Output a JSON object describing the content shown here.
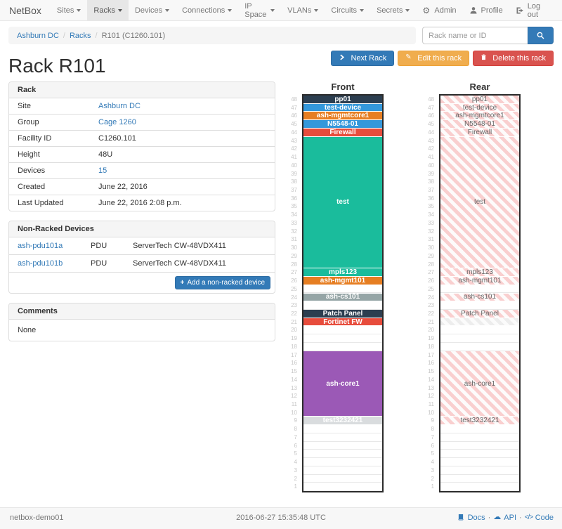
{
  "navbar": {
    "brand": "NetBox",
    "items": [
      {
        "label": "Sites"
      },
      {
        "label": "Racks"
      },
      {
        "label": "Devices"
      },
      {
        "label": "Connections"
      },
      {
        "label": "IP Space"
      },
      {
        "label": "VLANs"
      },
      {
        "label": "Circuits"
      },
      {
        "label": "Secrets"
      }
    ],
    "active_item": "Racks",
    "right_items": [
      {
        "label": "Admin",
        "icon": "gear-icon"
      },
      {
        "label": "Profile",
        "icon": "user-icon"
      },
      {
        "label": "Log out",
        "icon": "logout-icon"
      }
    ]
  },
  "breadcrumb": {
    "items": [
      "Ashburn DC",
      "Racks",
      "R101 (C1260.101)"
    ]
  },
  "search": {
    "placeholder": "Rack name or ID",
    "icon": "search-icon"
  },
  "actions": [
    {
      "label": "Next Rack",
      "style": "primary",
      "icon": "chevron-right-icon"
    },
    {
      "label": "Edit this rack",
      "style": "warning",
      "icon": "pencil-icon"
    },
    {
      "label": "Delete this rack",
      "style": "danger",
      "icon": "trash-icon"
    }
  ],
  "page_title": "Rack R101",
  "rack_panel": {
    "title": "Rack",
    "rows": [
      {
        "label": "Site",
        "value": "Ashburn DC",
        "link": true
      },
      {
        "label": "Group",
        "value": "Cage 1260",
        "link": true
      },
      {
        "label": "Facility ID",
        "value": "C1260.101",
        "link": false
      },
      {
        "label": "Height",
        "value": "48U",
        "link": false
      },
      {
        "label": "Devices",
        "value": "15",
        "link": true
      },
      {
        "label": "Created",
        "value": "June 22, 2016",
        "link": false
      },
      {
        "label": "Last Updated",
        "value": "June 22, 2016 2:08 p.m.",
        "link": false
      }
    ]
  },
  "non_racked": {
    "title": "Non-Racked Devices",
    "rows": [
      {
        "name": "ash-pdu101a",
        "role": "PDU",
        "type": "ServerTech CW-48VDX411"
      },
      {
        "name": "ash-pdu101b",
        "role": "PDU",
        "type": "ServerTech CW-48VDX411"
      }
    ],
    "add_button": "Add a non-racked device",
    "add_icon": "plus-icon"
  },
  "comments": {
    "title": "Comments",
    "body": "None"
  },
  "rack_units": 48,
  "elevations": {
    "front": {
      "title": "Front",
      "devices": [
        {
          "unit": 48,
          "span": 1,
          "label": "pp01",
          "bg": "#2c3e50",
          "fg": "#ffffff"
        },
        {
          "unit": 47,
          "span": 1,
          "label": "test-device",
          "bg": "#3498db",
          "fg": "#ffffff"
        },
        {
          "unit": 46,
          "span": 1,
          "label": "ash-mgmtcore1",
          "bg": "#e67e22",
          "fg": "#ffffff"
        },
        {
          "unit": 45,
          "span": 1,
          "label": "N5548-01",
          "bg": "#3498db",
          "fg": "#ffffff"
        },
        {
          "unit": 44,
          "span": 1,
          "label": "Firewall",
          "bg": "#e74c3c",
          "fg": "#ffffff"
        },
        {
          "unit": 43,
          "span": 16,
          "label": "test",
          "bg": "#1abc9c",
          "fg": "#ffffff"
        },
        {
          "unit": 27,
          "span": 1,
          "label": "mpls123",
          "bg": "#1abc9c",
          "fg": "#ffffff"
        },
        {
          "unit": 26,
          "span": 1,
          "label": "ash-mgmt101",
          "bg": "#e67e22",
          "fg": "#ffffff"
        },
        {
          "unit": 24,
          "span": 1,
          "label": "ash-cs101",
          "bg": "#95a5a6",
          "fg": "#ffffff"
        },
        {
          "unit": 22,
          "span": 1,
          "label": "Patch Panel",
          "bg": "#2c3e50",
          "fg": "#ffffff"
        },
        {
          "unit": 21,
          "span": 1,
          "label": "Fortinet FW",
          "bg": "#e74c3c",
          "fg": "#ffffff"
        },
        {
          "unit": 17,
          "span": 8,
          "label": "ash-core1",
          "bg": "#9b59b6",
          "fg": "#ffffff"
        },
        {
          "unit": 9,
          "span": 1,
          "label": "test3232421",
          "bg": "#d9dcde",
          "fg": "#ffffff"
        }
      ]
    },
    "rear": {
      "title": "Rear",
      "devices": [
        {
          "unit": 48,
          "span": 1,
          "label": "pp01",
          "hatch": "pink"
        },
        {
          "unit": 47,
          "span": 1,
          "label": "test-device",
          "hatch": "pink"
        },
        {
          "unit": 46,
          "span": 1,
          "label": "ash-mgmtcore1",
          "hatch": "pink"
        },
        {
          "unit": 45,
          "span": 1,
          "label": "N5548-01",
          "hatch": "pink"
        },
        {
          "unit": 44,
          "span": 1,
          "label": "Firewall",
          "hatch": "pink"
        },
        {
          "unit": 43,
          "span": 16,
          "label": "test",
          "hatch": "pink"
        },
        {
          "unit": 27,
          "span": 1,
          "label": "mpls123",
          "hatch": "pink"
        },
        {
          "unit": 26,
          "span": 1,
          "label": "ash-mgmt101",
          "hatch": "pink"
        },
        {
          "unit": 24,
          "span": 1,
          "label": "ash-cs101",
          "hatch": "pink"
        },
        {
          "unit": 22,
          "span": 1,
          "label": "Patch Panel",
          "hatch": "pink"
        },
        {
          "unit": 21,
          "span": 1,
          "label": "",
          "hatch": "light"
        },
        {
          "unit": 17,
          "span": 8,
          "label": "ash-core1",
          "hatch": "pink"
        },
        {
          "unit": 9,
          "span": 1,
          "label": "test3232421",
          "hatch": "pink"
        }
      ]
    }
  },
  "colors": {
    "primary": "#337ab7",
    "warning": "#f0ad4e",
    "danger": "#d9534f",
    "rear_hatch": "#f9cfcf"
  },
  "footer": {
    "left": "netbox-demo01",
    "center": "2016-06-27 15:35:48 UTC",
    "links": [
      {
        "label": "Docs",
        "icon": "book-icon"
      },
      {
        "label": "API",
        "icon": "cloud-icon"
      },
      {
        "label": "Code",
        "icon": "code-icon"
      }
    ]
  }
}
